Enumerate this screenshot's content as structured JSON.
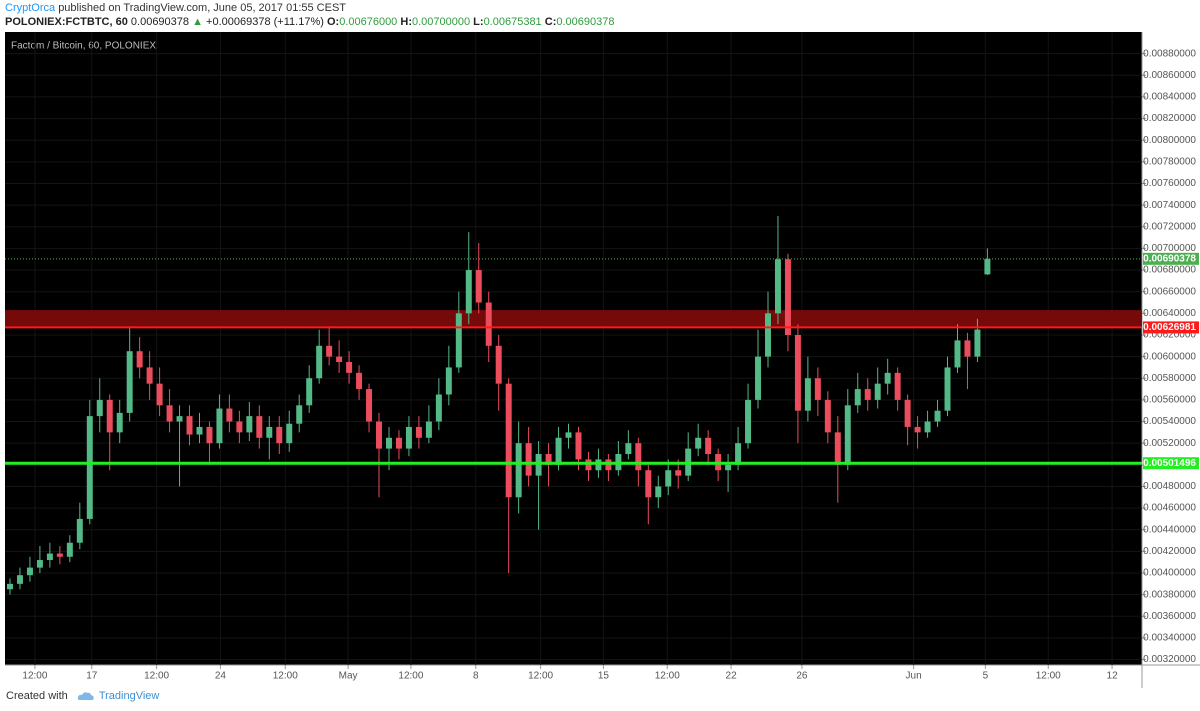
{
  "header": {
    "author": "CryptOrca",
    "published": "published on TradingView.com, June 05, 2017 01:55 CEST",
    "symbol": "POLONIEX:FCTBTC, 60",
    "last": "0.00690378",
    "arrow": "▲",
    "change": "+0.00069378 (+11.17%)",
    "o_label": "O:",
    "o": "0.00676000",
    "h_label": "H:",
    "h": "0.00700000",
    "l_label": "L:",
    "l": "0.00675381",
    "c_label": "C:",
    "c": "0.00690378"
  },
  "footer": {
    "created": "Created with",
    "brand": "TradingView"
  },
  "chart_data": {
    "type": "candlestick",
    "title": "Factom / Bitcoin, 60, POLONIEX",
    "up_color": "#53b987",
    "down_color": "#eb4d5c",
    "grid": true,
    "xlim": [
      0,
      114
    ],
    "ylim": [
      0.00315,
      0.009
    ],
    "xticks": [
      {
        "value": 3,
        "label": "12:00"
      },
      {
        "value": 8.7,
        "label": "17"
      },
      {
        "value": 15.2,
        "label": "12:00"
      },
      {
        "value": 21.6,
        "label": "24"
      },
      {
        "value": 28.1,
        "label": "12:00"
      },
      {
        "value": 34.4,
        "label": "May"
      },
      {
        "value": 40.7,
        "label": "12:00"
      },
      {
        "value": 47.2,
        "label": "8"
      },
      {
        "value": 53.7,
        "label": "12:00"
      },
      {
        "value": 60,
        "label": "15"
      },
      {
        "value": 66.4,
        "label": "12:00"
      },
      {
        "value": 72.8,
        "label": "22"
      },
      {
        "value": 79.9,
        "label": "26"
      },
      {
        "value": 91.1,
        "label": "Jun"
      },
      {
        "value": 98.3,
        "label": "5"
      },
      {
        "value": 104.6,
        "label": "12:00"
      },
      {
        "value": 111,
        "label": "12"
      }
    ],
    "yticks": [
      {
        "value": 0.0032,
        "label": "0.00320000"
      },
      {
        "value": 0.0034,
        "label": "0.00340000"
      },
      {
        "value": 0.0036,
        "label": "0.00360000"
      },
      {
        "value": 0.0038,
        "label": "0.00380000"
      },
      {
        "value": 0.004,
        "label": "0.00400000"
      },
      {
        "value": 0.0042,
        "label": "0.00420000"
      },
      {
        "value": 0.0044,
        "label": "0.00440000"
      },
      {
        "value": 0.0046,
        "label": "0.00460000"
      },
      {
        "value": 0.0048,
        "label": "0.00480000"
      },
      {
        "value": 0.005,
        "label": "0.00500000"
      },
      {
        "value": 0.0052,
        "label": "0.00520000"
      },
      {
        "value": 0.0054,
        "label": "0.00540000"
      },
      {
        "value": 0.0056,
        "label": "0.00560000"
      },
      {
        "value": 0.0058,
        "label": "0.00580000"
      },
      {
        "value": 0.006,
        "label": "0.00600000"
      },
      {
        "value": 0.0062,
        "label": "0.00620000"
      },
      {
        "value": 0.0064,
        "label": "0.00640000"
      },
      {
        "value": 0.0066,
        "label": "0.00660000"
      },
      {
        "value": 0.0068,
        "label": "0.00680000"
      },
      {
        "value": 0.007,
        "label": "0.00700000"
      },
      {
        "value": 0.0072,
        "label": "0.00720000"
      },
      {
        "value": 0.0074,
        "label": "0.00740000"
      },
      {
        "value": 0.0076,
        "label": "0.00760000"
      },
      {
        "value": 0.0078,
        "label": "0.00780000"
      },
      {
        "value": 0.008,
        "label": "0.00800000"
      },
      {
        "value": 0.0082,
        "label": "0.00820000"
      },
      {
        "value": 0.0084,
        "label": "0.00840000"
      },
      {
        "value": 0.0086,
        "label": "0.00860000"
      },
      {
        "value": 0.0088,
        "label": "0.00880000"
      }
    ],
    "zone": {
      "from": 0.00627,
      "to": 0.00643,
      "color": "#8b0a0a"
    },
    "levels": [
      {
        "value": 0.00690378,
        "color": "#4caf50",
        "style": "dotted"
      },
      {
        "value": 0.00626981,
        "color": "#ff1a1a",
        "style": "solid"
      },
      {
        "value": 0.00501496,
        "color": "#22ee22",
        "style": "solid"
      }
    ],
    "open": [
      0.00385,
      0.0039,
      0.00398,
      0.00405,
      0.00412,
      0.00418,
      0.00415,
      0.00428,
      0.0045,
      0.00545,
      0.0056,
      0.0053,
      0.00548,
      0.00605,
      0.0059,
      0.00575,
      0.00555,
      0.0054,
      0.00545,
      0.00528,
      0.00535,
      0.0052,
      0.00552,
      0.0054,
      0.0053,
      0.00545,
      0.00525,
      0.00535,
      0.0052,
      0.00538,
      0.00555,
      0.0058,
      0.0061,
      0.006,
      0.00595,
      0.00585,
      0.0057,
      0.0054,
      0.00515,
      0.00525,
      0.00515,
      0.00535,
      0.00525,
      0.0054,
      0.00565,
      0.0059,
      0.0064,
      0.0068,
      0.0065,
      0.0061,
      0.00575,
      0.0047,
      0.0052,
      0.0049,
      0.0051,
      0.005,
      0.00525,
      0.0053,
      0.00505,
      0.00495,
      0.00505,
      0.00495,
      0.0051,
      0.0052,
      0.00495,
      0.0047,
      0.0048,
      0.00495,
      0.0049,
      0.00515,
      0.00525,
      0.0051,
      0.00495,
      0.005,
      0.0052,
      0.0056,
      0.006,
      0.0064,
      0.0069,
      0.0062,
      0.0055,
      0.0058,
      0.0056,
      0.0053,
      0.005,
      0.00555,
      0.0057,
      0.0056,
      0.00575,
      0.00585,
      0.0056,
      0.00535,
      0.0053,
      0.0054,
      0.0055,
      0.0059,
      0.00615,
      0.006,
      0.00676
    ],
    "high": [
      0.00395,
      0.00405,
      0.00415,
      0.00425,
      0.00428,
      0.00425,
      0.00435,
      0.00465,
      0.0056,
      0.0058,
      0.00565,
      0.0056,
      0.00628,
      0.00618,
      0.00605,
      0.0059,
      0.0057,
      0.00555,
      0.00555,
      0.00548,
      0.0054,
      0.00565,
      0.00565,
      0.0055,
      0.00558,
      0.00555,
      0.00545,
      0.00545,
      0.0055,
      0.00565,
      0.00592,
      0.00625,
      0.00628,
      0.00615,
      0.00605,
      0.00592,
      0.00575,
      0.00548,
      0.00535,
      0.00532,
      0.00545,
      0.00545,
      0.00555,
      0.0058,
      0.0061,
      0.0066,
      0.00715,
      0.00705,
      0.0066,
      0.0062,
      0.0058,
      0.0054,
      0.00535,
      0.00522,
      0.0052,
      0.00535,
      0.00538,
      0.00535,
      0.00512,
      0.00515,
      0.0051,
      0.00522,
      0.00532,
      0.00525,
      0.005,
      0.0049,
      0.00505,
      0.00505,
      0.0053,
      0.00538,
      0.00532,
      0.00515,
      0.0051,
      0.00535,
      0.00575,
      0.00625,
      0.0066,
      0.0073,
      0.00695,
      0.0063,
      0.006,
      0.0059,
      0.00568,
      0.00545,
      0.0057,
      0.00585,
      0.0058,
      0.0059,
      0.00598,
      0.0059,
      0.00565,
      0.00545,
      0.0055,
      0.0056,
      0.006,
      0.0063,
      0.00622,
      0.00635,
      0.007
    ],
    "low": [
      0.0038,
      0.00385,
      0.00392,
      0.004,
      0.00405,
      0.00408,
      0.0041,
      0.00422,
      0.00445,
      0.0053,
      0.00495,
      0.0052,
      0.0054,
      0.0058,
      0.0056,
      0.00545,
      0.0053,
      0.0048,
      0.00518,
      0.0052,
      0.005,
      0.00515,
      0.0053,
      0.0052,
      0.00522,
      0.00515,
      0.00505,
      0.0051,
      0.00512,
      0.0053,
      0.00548,
      0.00575,
      0.00592,
      0.00585,
      0.00575,
      0.0056,
      0.0053,
      0.0047,
      0.00495,
      0.00505,
      0.00508,
      0.00515,
      0.0052,
      0.00532,
      0.00555,
      0.00585,
      0.0063,
      0.0064,
      0.00595,
      0.0055,
      0.004,
      0.00455,
      0.0048,
      0.0044,
      0.0048,
      0.00495,
      0.00515,
      0.00495,
      0.00485,
      0.00488,
      0.00485,
      0.0049,
      0.00505,
      0.0048,
      0.00445,
      0.0046,
      0.00472,
      0.00478,
      0.00485,
      0.00508,
      0.005,
      0.00485,
      0.00475,
      0.00495,
      0.00515,
      0.00552,
      0.0059,
      0.0063,
      0.00605,
      0.0052,
      0.0054,
      0.00545,
      0.0052,
      0.00465,
      0.00495,
      0.00548,
      0.0055,
      0.00552,
      0.00565,
      0.0055,
      0.00518,
      0.00515,
      0.00525,
      0.00535,
      0.00545,
      0.00585,
      0.0057,
      0.00595,
      0.00675381
    ],
    "close": [
      0.0039,
      0.00398,
      0.00405,
      0.00412,
      0.00418,
      0.00415,
      0.00428,
      0.0045,
      0.00545,
      0.0056,
      0.0053,
      0.00548,
      0.00605,
      0.0059,
      0.00575,
      0.00555,
      0.0054,
      0.00545,
      0.00528,
      0.00535,
      0.0052,
      0.00552,
      0.0054,
      0.0053,
      0.00545,
      0.00525,
      0.00535,
      0.0052,
      0.00538,
      0.00555,
      0.0058,
      0.0061,
      0.006,
      0.00595,
      0.00585,
      0.0057,
      0.0054,
      0.00515,
      0.00525,
      0.00515,
      0.00535,
      0.00525,
      0.0054,
      0.00565,
      0.0059,
      0.0064,
      0.0068,
      0.0065,
      0.0061,
      0.00575,
      0.0047,
      0.0052,
      0.0049,
      0.0051,
      0.005,
      0.00525,
      0.0053,
      0.00505,
      0.00495,
      0.00505,
      0.00495,
      0.0051,
      0.0052,
      0.00495,
      0.0047,
      0.0048,
      0.00495,
      0.0049,
      0.00515,
      0.00525,
      0.0051,
      0.00495,
      0.005,
      0.0052,
      0.0056,
      0.006,
      0.0064,
      0.0069,
      0.0062,
      0.0055,
      0.0058,
      0.0056,
      0.0053,
      0.005,
      0.00555,
      0.0057,
      0.0056,
      0.00575,
      0.00585,
      0.0056,
      0.00535,
      0.0053,
      0.0054,
      0.0055,
      0.0059,
      0.00615,
      0.006,
      0.00625,
      0.00690378
    ]
  }
}
